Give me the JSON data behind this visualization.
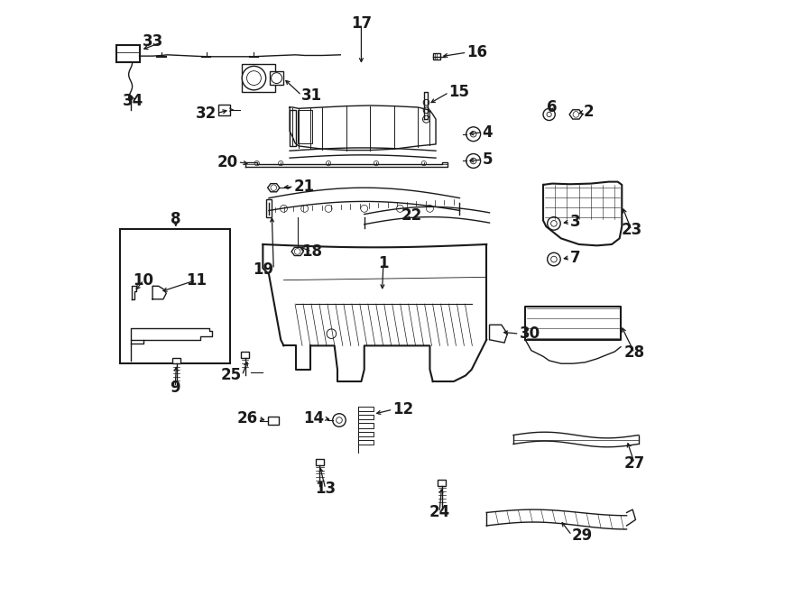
{
  "bg_color": "#ffffff",
  "line_color": "#1a1a1a",
  "figsize": [
    9.0,
    6.61
  ],
  "dpi": 100,
  "label_fontsize": 12,
  "label_positions": {
    "33": [
      0.09,
      0.93,
      "right",
      0.06,
      0.92
    ],
    "34": [
      0.04,
      0.83,
      "center",
      0.04,
      0.87
    ],
    "32": [
      0.2,
      0.81,
      "right",
      0.22,
      0.81
    ],
    "31": [
      0.32,
      0.84,
      "left",
      0.285,
      0.855
    ],
    "17": [
      0.42,
      0.96,
      "center",
      0.42,
      0.88
    ],
    "16": [
      0.6,
      0.91,
      "left",
      0.555,
      0.905
    ],
    "15": [
      0.57,
      0.84,
      "left",
      0.528,
      0.845
    ],
    "20": [
      0.22,
      0.73,
      "right",
      0.245,
      0.725
    ],
    "21": [
      0.31,
      0.69,
      "left",
      0.285,
      0.685
    ],
    "4": [
      0.63,
      0.78,
      "left",
      0.618,
      0.78
    ],
    "5": [
      0.63,
      0.73,
      "left",
      0.618,
      0.73
    ],
    "6": [
      0.745,
      0.81,
      "center",
      0.745,
      0.815
    ],
    "2": [
      0.81,
      0.81,
      "left",
      0.792,
      0.808
    ],
    "8": [
      0.115,
      0.63,
      "center",
      0.115,
      0.635
    ],
    "10": [
      0.065,
      0.52,
      "center",
      0.065,
      0.525
    ],
    "11": [
      0.145,
      0.52,
      "center",
      0.145,
      0.525
    ],
    "18": [
      0.34,
      0.58,
      "center",
      0.32,
      0.575
    ],
    "19": [
      0.285,
      0.545,
      "right",
      0.305,
      0.545
    ],
    "22": [
      0.505,
      0.635,
      "center",
      0.48,
      0.63
    ],
    "1": [
      0.46,
      0.555,
      "center",
      0.46,
      0.545
    ],
    "3": [
      0.77,
      0.625,
      "left",
      0.758,
      0.625
    ],
    "7": [
      0.77,
      0.565,
      "left",
      0.753,
      0.565
    ],
    "23": [
      0.875,
      0.61,
      "center",
      0.86,
      0.61
    ],
    "30": [
      0.685,
      0.435,
      "left",
      0.66,
      0.44
    ],
    "9": [
      0.115,
      0.348,
      "center",
      0.115,
      0.355
    ],
    "25": [
      0.228,
      0.365,
      "right",
      0.24,
      0.37
    ],
    "26": [
      0.255,
      0.3,
      "right",
      0.28,
      0.295
    ],
    "14": [
      0.365,
      0.295,
      "right",
      0.385,
      0.295
    ],
    "12": [
      0.475,
      0.31,
      "left",
      0.445,
      0.305
    ],
    "28": [
      0.885,
      0.405,
      "center",
      0.87,
      0.405
    ],
    "27": [
      0.885,
      0.225,
      "center",
      0.87,
      0.22
    ],
    "24": [
      0.555,
      0.14,
      "center",
      0.555,
      0.145
    ],
    "29": [
      0.775,
      0.1,
      "left",
      0.755,
      0.1
    ],
    "13": [
      0.365,
      0.178,
      "center",
      0.36,
      0.185
    ]
  }
}
